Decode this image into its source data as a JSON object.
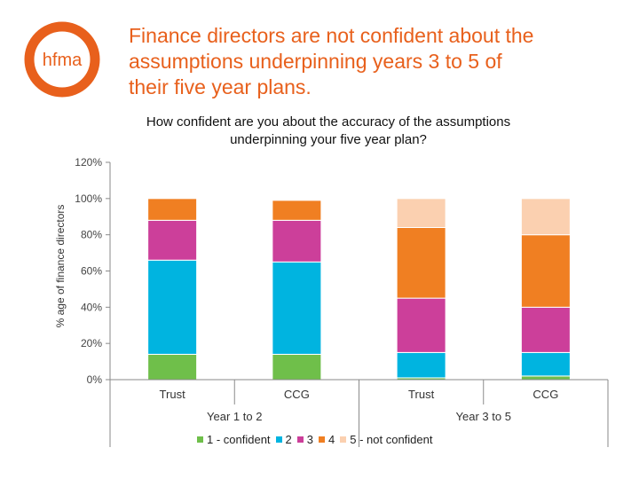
{
  "header": {
    "logo_text": "hfma",
    "title_lines": [
      "Finance directors are not confident about the",
      "assumptions underpinning years 3 to 5 of",
      "their five year plans."
    ]
  },
  "colors": {
    "brand": "#e8601c",
    "series": [
      "#6fbf4a",
      "#00b4e0",
      "#cc3f9a",
      "#f07f22",
      "#fbd0b0"
    ]
  },
  "chart_data": {
    "type": "bar",
    "stacked": true,
    "title_lines": [
      "How confident are you about the accuracy of the assumptions",
      "underpinning your five year plan?"
    ],
    "ylabel": "% age of finance directors",
    "ylim": [
      0,
      120
    ],
    "yticks": [
      "0%",
      "20%",
      "40%",
      "60%",
      "80%",
      "100%",
      "120%"
    ],
    "categories": [
      "Trust",
      "CCG",
      "Trust",
      "CCG"
    ],
    "groups": [
      "Year 1 to 2",
      "Year 3 to 5"
    ],
    "series": [
      {
        "name": "1 - confident",
        "values": [
          14,
          14,
          1,
          2
        ]
      },
      {
        "name": "2",
        "values": [
          52,
          51,
          14,
          13
        ]
      },
      {
        "name": "3",
        "values": [
          22,
          23,
          30,
          25
        ]
      },
      {
        "name": "4",
        "values": [
          12,
          11,
          39,
          40
        ]
      },
      {
        "name": "5 - not confident",
        "values": [
          0,
          0,
          16,
          20
        ]
      }
    ]
  }
}
